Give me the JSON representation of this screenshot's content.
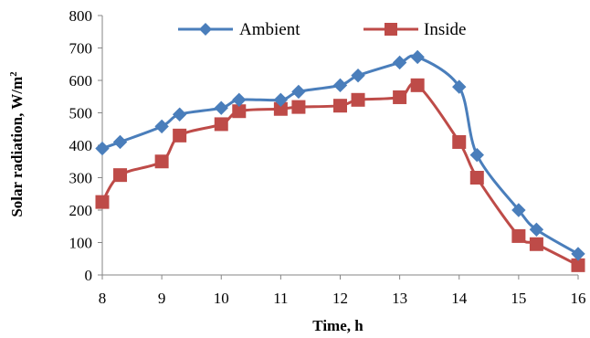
{
  "chart_data": {
    "type": "line",
    "title": "",
    "xlabel": "Time, h",
    "ylabel_main": "Solar radiation,  W/m",
    "ylabel_sup": "2",
    "xlim": [
      8,
      16
    ],
    "ylim": [
      0,
      800
    ],
    "xticks": [
      "8",
      "9",
      "10",
      "11",
      "12",
      "13",
      "14",
      "15",
      "16"
    ],
    "yticks": [
      "0",
      "100",
      "200",
      "300",
      "400",
      "500",
      "600",
      "700",
      "800"
    ],
    "grid": false,
    "legend_position": "top",
    "series": [
      {
        "name": "Ambient",
        "color": "#4a7ebb",
        "marker": "diamond",
        "x": [
          8,
          8.3,
          9,
          9.3,
          10,
          10.3,
          11,
          11.3,
          12,
          12.3,
          13,
          13.3,
          14,
          14.3,
          15,
          15.3,
          16
        ],
        "y": [
          390,
          410,
          458,
          495,
          515,
          540,
          540,
          565,
          585,
          615,
          655,
          672,
          580,
          370,
          200,
          140,
          65
        ]
      },
      {
        "name": "Inside",
        "color": "#be4b48",
        "marker": "square",
        "x": [
          8,
          8.3,
          9,
          9.3,
          10,
          10.3,
          11,
          11.3,
          12,
          12.3,
          13,
          13.3,
          14,
          14.3,
          15,
          15.3,
          16
        ],
        "y": [
          225,
          308,
          350,
          430,
          465,
          505,
          512,
          518,
          522,
          540,
          548,
          585,
          410,
          300,
          120,
          95,
          30
        ]
      }
    ]
  }
}
